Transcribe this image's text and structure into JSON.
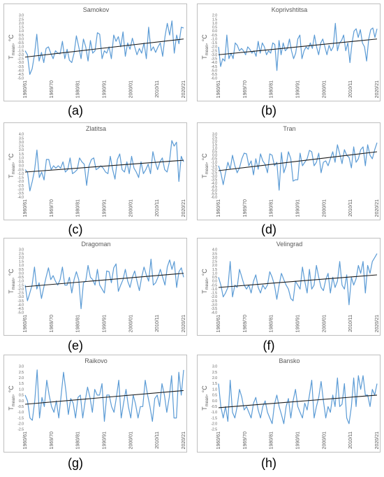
{
  "chart_data": [
    {
      "type": "line",
      "title": "Samokov",
      "panel_label": "(a)",
      "ylabel": "T",
      "ylabel_sub": "mean",
      "ylabel_unit": ", °C",
      "ylim": [
        -5.0,
        3.0
      ],
      "yticks": [
        "3.0",
        "2.5",
        "2.0",
        "1.5",
        "1.0",
        "0.5",
        "0.0",
        "-0.5",
        "-1.0",
        "-1.5",
        "-2.0",
        "-2.5",
        "-3.0",
        "-3.5",
        "-4.0",
        "-4.5",
        "-5.0"
      ],
      "x_tick_labels": [
        "1960/61",
        "1969/70",
        "1980/81",
        "1990/91",
        "2000/01",
        "2010/11",
        "2020/21"
      ],
      "trend": [
        -2.3,
        0.0
      ],
      "values": [
        -1.5,
        -2.0,
        -4.5,
        -3.8,
        -2.0,
        0.6,
        -2.8,
        -1.7,
        -3.0,
        -1.2,
        -1.0,
        -1.8,
        -2.5,
        -1.5,
        -1.8,
        -1.9,
        -0.3,
        -2.5,
        -1.3,
        -2.7,
        -3.0,
        -1.8,
        0.4,
        -1.0,
        -2.5,
        0.0,
        -1.0,
        -2.8,
        -0.2,
        -1.8,
        -1.5,
        0.8,
        0.6,
        -2.5,
        -1.5,
        -1.8,
        -1.0,
        -2.5,
        0.5,
        -0.3,
        0.3,
        -1.0,
        0.9,
        -2.2,
        -0.5,
        -1.3,
        0.1,
        -1.0,
        -2.0,
        -1.2,
        -1.8,
        -0.5,
        -2.5,
        1.5,
        -1.5,
        -1.0,
        -1.7,
        -1.0,
        -0.5,
        -2.2,
        0.3,
        2.0,
        0.5,
        2.3,
        -1.8,
        0.5,
        -0.6,
        1.5,
        1.4
      ]
    },
    {
      "type": "line",
      "title": "Koprivshtitsa",
      "panel_label": "(b)",
      "ylabel": "T",
      "ylabel_sub": "mean",
      "ylabel_unit": ", °C",
      "ylim": [
        -6.0,
        2.0
      ],
      "yticks": [
        "2.0",
        "1.5",
        "1.0",
        "0.5",
        "0.0",
        "-0.5",
        "-1.0",
        "-1.5",
        "-2.0",
        "-2.5",
        "-3.0",
        "-3.5",
        "-4.0",
        "-4.5",
        "-5.0",
        "-5.5",
        "-6.0"
      ],
      "x_tick_labels": [
        "1960/61",
        "1969/70",
        "1980/81",
        "1990/91",
        "2000/01",
        "2010/11",
        "2020/21"
      ],
      "trend": [
        -3.0,
        -1.0
      ],
      "values": [
        -2.0,
        -4.5,
        -3.5,
        -3.8,
        -0.5,
        -3.5,
        -2.8,
        -3.5,
        -1.5,
        -1.8,
        -2.5,
        -2.2,
        -2.5,
        -3.0,
        -2.0,
        -2.3,
        -2.8,
        -2.5,
        -3.2,
        -1.3,
        -2.8,
        -1.5,
        -2.0,
        -3.0,
        -2.5,
        -2.8,
        -1.5,
        -1.7,
        -5.0,
        -1.2,
        -3.0,
        -1.5,
        -2.5,
        -2.2,
        -1.0,
        -2.5,
        -3.5,
        -2.8,
        -1.0,
        -0.5,
        -3.5,
        -2.5,
        -2.0,
        -2.3,
        -1.5,
        -2.2,
        -0.5,
        -2.0,
        -3.0,
        -1.5,
        -1.0,
        -2.0,
        -3.0,
        -1.8,
        -2.5,
        -2.0,
        1.0,
        -2.5,
        -1.5,
        -1.2,
        -0.5,
        -2.5,
        -1.5,
        -4.0,
        -1.5,
        0.0,
        0.3,
        -0.8,
        0.2,
        -1.5,
        -2.0,
        -3.8,
        -1.0,
        0.2,
        0.4,
        -0.8,
        0.3
      ]
    },
    {
      "type": "line",
      "title": "Zlatitsa",
      "panel_label": "(c)",
      "ylabel": "T",
      "ylabel_sub": "mean",
      "ylabel_unit": ", °C",
      "ylim": [
        -4.0,
        4.0
      ],
      "yticks": [
        "4.0",
        "3.5",
        "3.0",
        "2.5",
        "2.0",
        "1.5",
        "1.0",
        "0.5",
        "0.0",
        "-0.5",
        "-1.0",
        "-1.5",
        "-2.0",
        "-2.5",
        "-3.0",
        "-3.5",
        "-4.0"
      ],
      "x_tick_labels": [
        "1960/61",
        "1969/70",
        "1980/81",
        "1990/91",
        "2000/01",
        "2010/11",
        "2020/21"
      ],
      "trend": [
        -0.8,
        0.7
      ],
      "values": [
        -0.5,
        -0.8,
        -3.2,
        -2.0,
        -0.5,
        2.0,
        -1.5,
        -0.8,
        -1.8,
        0.8,
        0.8,
        -0.5,
        0.0,
        -0.3,
        0.0,
        -0.3,
        0.5,
        -0.8,
        -0.5,
        1.0,
        -1.0,
        -0.8,
        -0.5,
        1.0,
        0.5,
        0.2,
        -2.5,
        0.0,
        0.8,
        1.0,
        -0.5,
        -0.3,
        0.0,
        -0.3,
        -0.8,
        -1.0,
        1.2,
        -0.5,
        -1.7,
        0.8,
        1.5,
        -0.5,
        -0.8,
        0.5,
        -1.0,
        1.2,
        -0.3,
        -0.8,
        -1.5,
        0.5,
        -1.0,
        -0.5,
        0.2,
        -1.0,
        1.8,
        0.5,
        -0.5,
        0.5,
        1.0,
        -0.5,
        -0.8,
        0.5,
        3.2,
        2.5,
        3.0,
        -2.0,
        1.2,
        0.5
      ]
    },
    {
      "type": "line",
      "title": "Tran",
      "panel_label": "(d)",
      "ylabel": "T",
      "ylabel_sub": "mean",
      "ylabel_unit": ", °C",
      "ylim": [
        -6.0,
        3.0
      ],
      "yticks": [
        "3.0",
        "2.5",
        "2.0",
        "1.5",
        "1.0",
        "0.5",
        "0.0",
        "-0.5",
        "-1.0",
        "-1.5",
        "-2.0",
        "-2.5",
        "-3.0",
        "-3.5",
        "-4.0",
        "-4.5",
        "-5.0",
        "-5.5",
        "-6.0"
      ],
      "x_tick_labels": [
        "1960/61",
        "1969/70",
        "1980/81",
        "1990/91",
        "2000/01",
        "2010/11",
        "2020/21"
      ],
      "trend": [
        -2.2,
        0.5
      ],
      "values": [
        -1.5,
        -2.5,
        -4.2,
        -2.5,
        -1.0,
        -2.0,
        0.0,
        -1.5,
        -2.5,
        -1.8,
        -0.5,
        0.3,
        0.2,
        -1.5,
        -0.8,
        -2.8,
        -0.5,
        -2.0,
        0.2,
        -0.8,
        -1.3,
        -2.5,
        0.2,
        0.0,
        -1.5,
        -1.0,
        -5.0,
        0.4,
        -2.5,
        -1.5,
        0.5,
        -0.5,
        -3.7,
        -3.5,
        -3.5,
        0.3,
        -1.5,
        -1.0,
        -0.5,
        0.7,
        0.5,
        -1.5,
        -1.0,
        0.3,
        -2.5,
        -1.0,
        -0.8,
        -1.5,
        -0.5,
        0.5,
        -1.0,
        1.5,
        0.2,
        -1.2,
        0.8,
        0.0,
        -0.3,
        -1.8,
        1.2,
        -1.0,
        -0.5,
        0.8,
        1.2,
        -1.5,
        1.5,
        0.0,
        -0.5,
        0.8,
        1.8
      ]
    },
    {
      "type": "line",
      "title": "Dragoman",
      "panel_label": "(e)",
      "ylabel": "T",
      "ylabel_sub": "mean",
      "ylabel_unit": ", °C",
      "ylim": [
        -5.0,
        3.0
      ],
      "yticks": [
        "3.0",
        "2.5",
        "2.0",
        "1.5",
        "1.0",
        "0.5",
        "0.0",
        "-0.5",
        "-1.0",
        "-1.5",
        "-2.0",
        "-2.5",
        "-3.0",
        "-3.5",
        "-4.0",
        "-4.5",
        "-5.0"
      ],
      "x_tick_labels": [
        "1960/61",
        "1969/70",
        "1980/81",
        "1990/91",
        "2000/01",
        "2010/11",
        "2020/21"
      ],
      "trend": [
        -1.7,
        0.0
      ],
      "values": [
        -1.5,
        -3.5,
        -2.5,
        -1.5,
        0.8,
        -2.0,
        -1.2,
        -3.2,
        -1.8,
        -0.5,
        0.7,
        -0.8,
        -0.3,
        -1.0,
        -1.5,
        -0.8,
        0.8,
        -1.5,
        -1.5,
        -0.5,
        -2.5,
        -0.8,
        0.2,
        -0.8,
        -4.5,
        -1.2,
        -1.0,
        1.0,
        -0.5,
        -0.8,
        -1.5,
        0.5,
        -1.5,
        -2.0,
        -2.5,
        0.3,
        0.2,
        -1.2,
        0.7,
        1.2,
        -2.3,
        -1.5,
        -0.8,
        0.5,
        -1.0,
        -1.8,
        -0.5,
        0.3,
        -1.0,
        -2.2,
        -0.5,
        0.8,
        -0.2,
        -1.0,
        1.8,
        -1.5,
        -1.2,
        -0.5,
        0.5,
        -0.5,
        -1.5,
        0.8,
        1.7,
        0.5,
        1.5,
        -1.8,
        0.2,
        0.7,
        -0.5
      ]
    },
    {
      "type": "line",
      "title": "Velingrad",
      "panel_label": "(f)",
      "ylabel": "T",
      "ylabel_sub": "mean",
      "ylabel_unit": ", °C",
      "ylim": [
        -4.0,
        4.0
      ],
      "yticks": [
        "4.0",
        "3.5",
        "3.0",
        "2.5",
        "2.0",
        "1.5",
        "1.0",
        "0.5",
        "0.0",
        "-0.5",
        "-1.0",
        "-1.5",
        "-2.0",
        "-2.5",
        "-3.0",
        "-3.5",
        "-4.0"
      ],
      "x_tick_labels": [
        "1960/61",
        "1969/70",
        "1980/81",
        "1990/91",
        "2000/01",
        "2010/11",
        "2020/21"
      ],
      "trend": [
        -0.8,
        0.8
      ],
      "values": [
        0.5,
        -0.5,
        -2.0,
        -1.5,
        -0.8,
        2.5,
        -2.0,
        -0.5,
        -0.8,
        1.5,
        0.5,
        -0.5,
        -1.0,
        -0.5,
        -1.5,
        0.0,
        0.8,
        -0.8,
        -1.5,
        -0.5,
        -1.0,
        -0.5,
        1.2,
        0.5,
        -0.5,
        -2.3,
        -0.5,
        1.0,
        0.2,
        -0.5,
        -1.0,
        -2.2,
        -2.5,
        0.0,
        -0.5,
        -1.0,
        1.8,
        0.0,
        -1.5,
        1.5,
        -1.0,
        -0.5,
        2.0,
        0.5,
        -0.8,
        -1.2,
        0.2,
        1.0,
        -1.5,
        0.5,
        -0.8,
        0.0,
        2.5,
        -0.5,
        -1.0,
        0.8,
        -3.0,
        0.5,
        -0.5,
        0.3,
        2.0,
        1.0,
        2.5,
        -1.5,
        2.0,
        1.0,
        2.5,
        3.0,
        3.5
      ]
    },
    {
      "type": "line",
      "title": "Raikovo",
      "panel_label": "(g)",
      "ylabel": "T",
      "ylabel_sub": "mean",
      "ylabel_unit": ", °C",
      "ylim": [
        -2.5,
        3.0
      ],
      "yticks": [
        "3.0",
        "2.5",
        "2.0",
        "1.5",
        "1.0",
        "0.5",
        "0.0",
        "-0.5",
        "-1.0",
        "-1.5",
        "-2.0",
        "-2.5"
      ],
      "x_tick_labels": [
        "1960/61",
        "1969/70",
        "1980/81",
        "1990/91",
        "2000/01",
        "2010/11",
        "2020/21"
      ],
      "trend": [
        -0.3,
        0.9
      ],
      "values": [
        0.5,
        0.0,
        -1.5,
        -1.7,
        0.0,
        2.7,
        -1.5,
        0.3,
        -0.5,
        1.8,
        0.5,
        -0.5,
        -1.0,
        0.0,
        -1.5,
        0.5,
        2.5,
        0.8,
        -1.2,
        0.2,
        -0.2,
        -1.5,
        0.3,
        0.5,
        -1.5,
        0.0,
        1.2,
        0.3,
        -1.0,
        1.0,
        0.5,
        0.5,
        1.5,
        -1.8,
        0.5,
        0.5,
        -0.5,
        -1.0,
        0.3,
        1.8,
        -1.5,
        -0.2,
        1.0,
        -0.5,
        -1.5,
        0.5,
        -0.3,
        -1.5,
        -0.5,
        -0.5,
        1.8,
        0.5,
        -0.5,
        -1.8,
        0.2,
        0.5,
        -0.5,
        1.5,
        0.5,
        -1.0,
        0.3,
        2.2,
        -1.5,
        -1.5,
        2.5,
        0.5,
        2.7
      ]
    },
    {
      "type": "line",
      "title": "Bansko",
      "panel_label": "(h)",
      "ylabel": "T",
      "ylabel_sub": "mean",
      "ylabel_unit": ", °C",
      "ylim": [
        -2.5,
        3.0
      ],
      "yticks": [
        "3.0",
        "2.5",
        "2.0",
        "1.5",
        "1.0",
        "0.5",
        "0.0",
        "-0.5",
        "-1.0",
        "-1.5",
        "-2.0",
        "-2.5"
      ],
      "x_tick_labels": [
        "1960/61",
        "1969/70",
        "1980/81",
        "1990/91",
        "2000/01",
        "2010/11",
        "2020/21"
      ],
      "trend": [
        -0.6,
        0.5
      ],
      "values": [
        1.5,
        -0.5,
        -1.5,
        -0.5,
        -1.8,
        1.8,
        -1.0,
        -1.5,
        -0.5,
        1.0,
        0.3,
        -0.8,
        -0.5,
        -1.0,
        -1.5,
        -0.2,
        0.3,
        -0.8,
        -1.5,
        -0.5,
        0.0,
        -1.0,
        -1.5,
        -2.0,
        -0.3,
        0.5,
        -0.5,
        -1.2,
        -2.0,
        -0.5,
        0.2,
        -1.5,
        0.0,
        1.0,
        -0.5,
        -1.0,
        -1.5,
        -0.2,
        -0.8,
        0.5,
        1.8,
        -1.5,
        -0.5,
        0.3,
        1.7,
        0.0,
        -1.5,
        -0.5,
        -1.0,
        0.5,
        -0.5,
        2.0,
        -0.5,
        -0.3,
        1.5,
        -1.5,
        -2.0,
        -0.5,
        2.0,
        -0.5,
        2.2,
        1.0,
        2.2,
        0.5,
        0.5,
        -0.5,
        1.0,
        0.5,
        1.5
      ]
    }
  ]
}
